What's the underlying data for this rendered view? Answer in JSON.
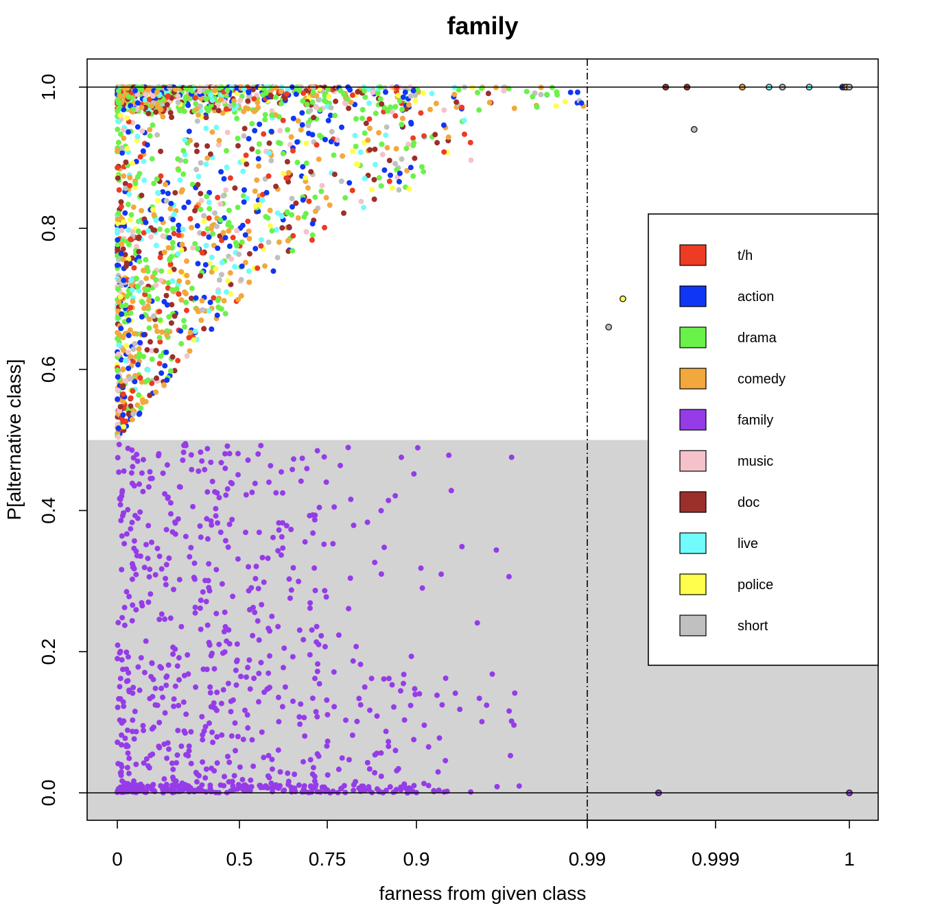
{
  "chart_data": {
    "type": "scatter",
    "title": "family",
    "xlabel": "farness from given class",
    "ylabel": "P[alternative class]",
    "x_scale": "nonlinear (sigmoid-like stretch toward 1)",
    "x_ticks": [
      "0",
      "0.5",
      "0.75",
      "0.9",
      "0.99",
      "0.999",
      "1"
    ],
    "x_tick_values": [
      0,
      0.5,
      0.75,
      0.9,
      0.99,
      0.999,
      1
    ],
    "y_ticks": [
      "0.0",
      "0.2",
      "0.4",
      "0.6",
      "0.8",
      "1.0"
    ],
    "y_tick_values": [
      0,
      0.2,
      0.4,
      0.6,
      0.8,
      1.0
    ],
    "ylim": [
      -0.04,
      1.04
    ],
    "xlim": [
      0,
      1
    ],
    "grid": false,
    "legend_position": "right",
    "shaded_region": {
      "y_range": [
        -0.04,
        0.5
      ],
      "color": "#d3d3d3"
    },
    "reference_lines": [
      {
        "orientation": "horizontal",
        "y": 0,
        "style": "solid"
      },
      {
        "orientation": "horizontal",
        "y": 1,
        "style": "solid"
      },
      {
        "orientation": "vertical",
        "x": 0.99,
        "style": "dash-dot"
      }
    ],
    "series": [
      {
        "name": "t/h",
        "color": "#ee3b24"
      },
      {
        "name": "action",
        "color": "#1036f5"
      },
      {
        "name": "drama",
        "color": "#6af24a"
      },
      {
        "name": "comedy",
        "color": "#f2a83c"
      },
      {
        "name": "family",
        "color": "#953ce8"
      },
      {
        "name": "music",
        "color": "#f5c2cc"
      },
      {
        "name": "doc",
        "color": "#9b302b"
      },
      {
        "name": "live",
        "color": "#71fbfd"
      },
      {
        "name": "police",
        "color": "#fffe4d"
      },
      {
        "name": "short",
        "color": "#c0c0c0"
      }
    ],
    "outlier_points": [
      {
        "series": "short",
        "x": 0.9975,
        "y": 0.94
      },
      {
        "series": "police",
        "x": 0.9925,
        "y": 0.7
      },
      {
        "series": "short",
        "x": 0.9915,
        "y": 0.66
      },
      {
        "series": "family",
        "x": 0.995,
        "y": 0.0
      },
      {
        "series": "family",
        "x": 1.0,
        "y": 0.0
      },
      {
        "series": "doc",
        "x": 0.9955,
        "y": 1.0
      },
      {
        "series": "doc",
        "x": 0.997,
        "y": 1.0
      },
      {
        "series": "comedy",
        "x": 0.9992,
        "y": 1.0
      },
      {
        "series": "live",
        "x": 0.9994,
        "y": 1.0
      },
      {
        "series": "short",
        "x": 0.9995,
        "y": 1.0
      },
      {
        "series": "live",
        "x": 0.9997,
        "y": 1.0
      },
      {
        "series": "action",
        "x": 0.99995,
        "y": 1.0
      },
      {
        "series": "comedy",
        "x": 0.99997,
        "y": 1.0
      },
      {
        "series": "comedy",
        "x": 0.99998,
        "y": 1.0
      },
      {
        "series": "short",
        "x": 1.0,
        "y": 1.0
      }
    ],
    "bulk_distribution_note": "Thousands of points: non-family series lie between y=0.5 and 1.0 densest near x=0-0.75; family series lies between y=0 and 0.5."
  }
}
